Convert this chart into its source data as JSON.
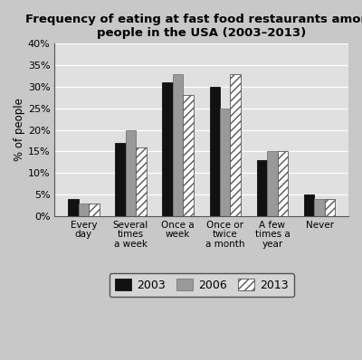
{
  "title": "Frequency of eating at fast food restaurants among\npeople in the USA (2003–2013)",
  "categories": [
    "Every\nday",
    "Several\ntimes\na week",
    "Once a\nweek",
    "Once or\ntwice\na month",
    "A few\ntimes a\nyear",
    "Never"
  ],
  "series": {
    "2003": [
      4,
      17,
      31,
      30,
      13,
      5
    ],
    "2006": [
      3,
      20,
      33,
      25,
      15,
      4
    ],
    "2013": [
      3,
      16,
      28,
      33,
      15,
      4
    ]
  },
  "bar_colors": {
    "2003": "#111111",
    "2006": "#999999",
    "2013": "#ffffff"
  },
  "bar_hatch": {
    "2003": "",
    "2006": "",
    "2013": "////"
  },
  "bar_edgecolor": {
    "2003": "#111111",
    "2006": "#777777",
    "2013": "#555555"
  },
  "ylabel": "% of people",
  "ylim": [
    0,
    40
  ],
  "yticks": [
    0,
    5,
    10,
    15,
    20,
    25,
    30,
    35,
    40
  ],
  "ytick_labels": [
    "0%",
    "5%",
    "10%",
    "15%",
    "20%",
    "25%",
    "30%",
    "35%",
    "40%"
  ],
  "legend_labels": [
    "2003",
    "2006",
    "2013"
  ],
  "background_color": "#c8c8c8",
  "plot_bg_color": "#e0e0e0",
  "title_fontsize": 9.5,
  "bar_width": 0.22
}
